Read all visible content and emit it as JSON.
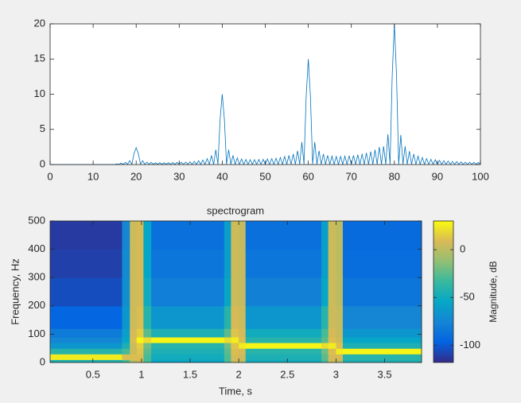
{
  "chart_data": [
    {
      "type": "line",
      "x": [
        0,
        15,
        15.5,
        16,
        16.5,
        17,
        17.5,
        18,
        18.5,
        19,
        19.5,
        20,
        20.5,
        21,
        21.5,
        22,
        22.5,
        23,
        23.5,
        24,
        24.5,
        25,
        25.5,
        26,
        26.5,
        27,
        27.5,
        28,
        28.5,
        29,
        29.5,
        30,
        30.5,
        31,
        31.5,
        32,
        32.5,
        33,
        33.5,
        34,
        34.5,
        35,
        35.5,
        36,
        36.5,
        37,
        37.5,
        38,
        38.5,
        39,
        39.5,
        40,
        40.5,
        41,
        41.5,
        42,
        42.5,
        43,
        43.5,
        44,
        44.5,
        45,
        45.5,
        46,
        46.5,
        47,
        47.5,
        48,
        48.5,
        49,
        49.5,
        50,
        50.5,
        51,
        51.5,
        52,
        52.5,
        53,
        53.5,
        54,
        54.5,
        55,
        55.5,
        56,
        56.5,
        57,
        57.5,
        58,
        58.5,
        59,
        59.5,
        60,
        60.5,
        61,
        61.5,
        62,
        62.5,
        63,
        63.5,
        64,
        64.5,
        65,
        65.5,
        66,
        66.5,
        67,
        67.5,
        68,
        68.5,
        69,
        69.5,
        70,
        70.5,
        71,
        71.5,
        72,
        72.5,
        73,
        73.5,
        74,
        74.5,
        75,
        75.5,
        76,
        76.5,
        77,
        77.5,
        78,
        78.5,
        79,
        79.5,
        80,
        80.5,
        81,
        81.5,
        82,
        82.5,
        83,
        83.5,
        84,
        84.5,
        85,
        85.5,
        86,
        86.5,
        87,
        87.5,
        88,
        88.5,
        89,
        89.5,
        90,
        90.5,
        91,
        91.5,
        92,
        92.5,
        93,
        93.5,
        94,
        94.5,
        95,
        95.5,
        96,
        96.5,
        97,
        97.5,
        98,
        98.5,
        99,
        99.5,
        100
      ],
      "values": [
        0,
        0,
        0.1,
        0.03,
        0.2,
        0.03,
        0.3,
        0.03,
        0.55,
        0.05,
        1.55,
        2.4,
        1.55,
        0.05,
        0.55,
        0.03,
        0.35,
        0.03,
        0.3,
        0.03,
        0.25,
        0.03,
        0.25,
        0.03,
        0.25,
        0.03,
        0.25,
        0.03,
        0.28,
        0.03,
        0.3,
        0.03,
        0.32,
        0.03,
        0.35,
        0.03,
        0.4,
        0.03,
        0.45,
        0.03,
        0.55,
        0.03,
        0.65,
        0.03,
        0.85,
        0.03,
        1.3,
        0.03,
        2.1,
        0.05,
        6.4,
        10,
        6.4,
        0.05,
        2.1,
        0.03,
        1.3,
        0.03,
        0.95,
        0.03,
        0.8,
        0.03,
        0.72,
        0.03,
        0.7,
        0.03,
        0.7,
        0.03,
        0.72,
        0.03,
        0.75,
        0.03,
        0.8,
        0.03,
        0.85,
        0.03,
        0.9,
        0.03,
        1,
        0.03,
        1.15,
        0.03,
        1.3,
        0.03,
        1.5,
        0.03,
        1.95,
        0.03,
        3.2,
        0.05,
        9.6,
        15,
        9.6,
        0.05,
        3.2,
        0.03,
        1.95,
        0.03,
        1.5,
        0.03,
        1.3,
        0.03,
        1.2,
        0.03,
        1.15,
        0.03,
        1.15,
        0.03,
        1.2,
        0.03,
        1.25,
        0.03,
        1.3,
        0.03,
        1.4,
        0.03,
        1.5,
        0.03,
        1.65,
        0.03,
        1.85,
        0.03,
        2.1,
        0.03,
        2.5,
        0.03,
        2.6,
        0.03,
        4.3,
        0.05,
        12.7,
        20,
        12.7,
        0.05,
        4.2,
        0.03,
        2.6,
        0.03,
        1.9,
        0.03,
        1.5,
        0.03,
        1.2,
        0.03,
        1,
        0.03,
        0.85,
        0.03,
        0.75,
        0.03,
        0.68,
        0.03,
        0.6,
        0.03,
        0.55,
        0.03,
        0.5,
        0.03,
        0.45,
        0.03,
        0.42,
        0.03,
        0.38,
        0.03,
        0.35,
        0.03,
        0.32,
        0.03,
        0.3,
        0.03,
        0.28,
        0.1
      ],
      "color": "#0072bd",
      "xlim": [
        0,
        100
      ],
      "xticks": [
        0,
        10,
        20,
        30,
        40,
        50,
        60,
        70,
        80,
        90,
        100
      ],
      "ylim": [
        0,
        20
      ],
      "yticks": [
        0,
        5,
        10,
        15,
        20
      ]
    },
    {
      "type": "heatmap",
      "title": "spectrogram",
      "x_label": "Time, s",
      "y_label": "Frequency, Hz",
      "xbins": [
        0.06,
        0.8,
        0.88,
        0.95,
        1.02,
        1.1,
        1.85,
        1.92,
        2.0,
        2.07,
        2.85,
        2.92,
        3.0,
        3.07,
        3.88
      ],
      "ybins": [
        0,
        10,
        30,
        50,
        70,
        90,
        120,
        200,
        300,
        400,
        500
      ],
      "z": [
        [
          -45,
          -30,
          0,
          5,
          -30,
          -55,
          -30,
          5,
          0,
          -50,
          -30,
          5,
          0,
          -45
        ],
        [
          25,
          10,
          10,
          10,
          -30,
          -50,
          -28,
          8,
          5,
          -45,
          -25,
          8,
          8,
          -40
        ],
        [
          -40,
          -30,
          5,
          12,
          -25,
          -45,
          -25,
          10,
          8,
          -40,
          -20,
          10,
          25,
          28
        ],
        [
          -65,
          -45,
          5,
          15,
          -20,
          -40,
          -20,
          12,
          25,
          28,
          20,
          25,
          10,
          -45
        ],
        [
          -75,
          -55,
          10,
          28,
          20,
          28,
          20,
          25,
          10,
          -40,
          -25,
          10,
          5,
          -55
        ],
        [
          -82,
          -60,
          8,
          15,
          -25,
          -45,
          -25,
          12,
          8,
          -50,
          -30,
          8,
          3,
          -65
        ],
        [
          -95,
          -65,
          5,
          10,
          -40,
          -65,
          -40,
          8,
          5,
          -65,
          -40,
          5,
          2,
          -75
        ],
        [
          -105,
          -70,
          5,
          8,
          -50,
          -80,
          -55,
          5,
          3,
          -78,
          -55,
          5,
          0,
          -85
        ],
        [
          -110,
          -72,
          5,
          8,
          -55,
          -85,
          -60,
          5,
          3,
          -85,
          -60,
          5,
          0,
          -90
        ],
        [
          -112,
          -75,
          5,
          8,
          -55,
          -88,
          -60,
          5,
          3,
          -88,
          -60,
          5,
          0,
          -92
        ]
      ],
      "xlim": [
        0.06,
        3.88
      ],
      "xticks": [
        0.5,
        1,
        1.5,
        2,
        2.5,
        3,
        3.5
      ],
      "ylim": [
        0,
        500
      ],
      "yticks": [
        0,
        100,
        200,
        300,
        400,
        500
      ],
      "colormap": [
        "#352a87",
        "#0363e1",
        "#1485d4",
        "#06a7c6",
        "#38b99e",
        "#92bf73",
        "#d9ba56",
        "#f9fb0e"
      ],
      "colorbar": {
        "label": "Magnitude, dB",
        "clim": [
          -118,
          30
        ],
        "ticks": [
          -100,
          -50,
          0
        ]
      }
    }
  ]
}
